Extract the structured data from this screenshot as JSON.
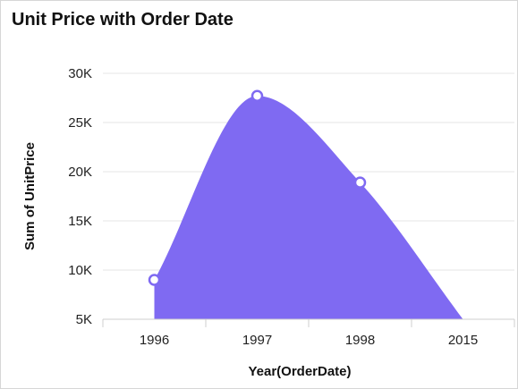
{
  "chart_data": {
    "type": "area",
    "title": "Unit Price with Order Date",
    "xlabel": "Year(OrderDate)",
    "ylabel": "Sum of UnitPrice",
    "categories": [
      "1996",
      "1997",
      "1998",
      "2015"
    ],
    "series": [
      {
        "values": [
          9000,
          27700,
          18900,
          5000
        ]
      }
    ],
    "ylim": [
      5000,
      30000
    ],
    "yticks": [
      5000,
      10000,
      15000,
      20000,
      25000,
      30000
    ],
    "ytick_labels": [
      "5K",
      "10K",
      "15K",
      "20K",
      "25K",
      "30K"
    ],
    "grid": true,
    "legend": "none",
    "colors": {
      "area": "#7f6af2",
      "marker_fill": "#ffffff",
      "marker_stroke": "#7f6af2",
      "grid": "#e6e6e6"
    }
  }
}
